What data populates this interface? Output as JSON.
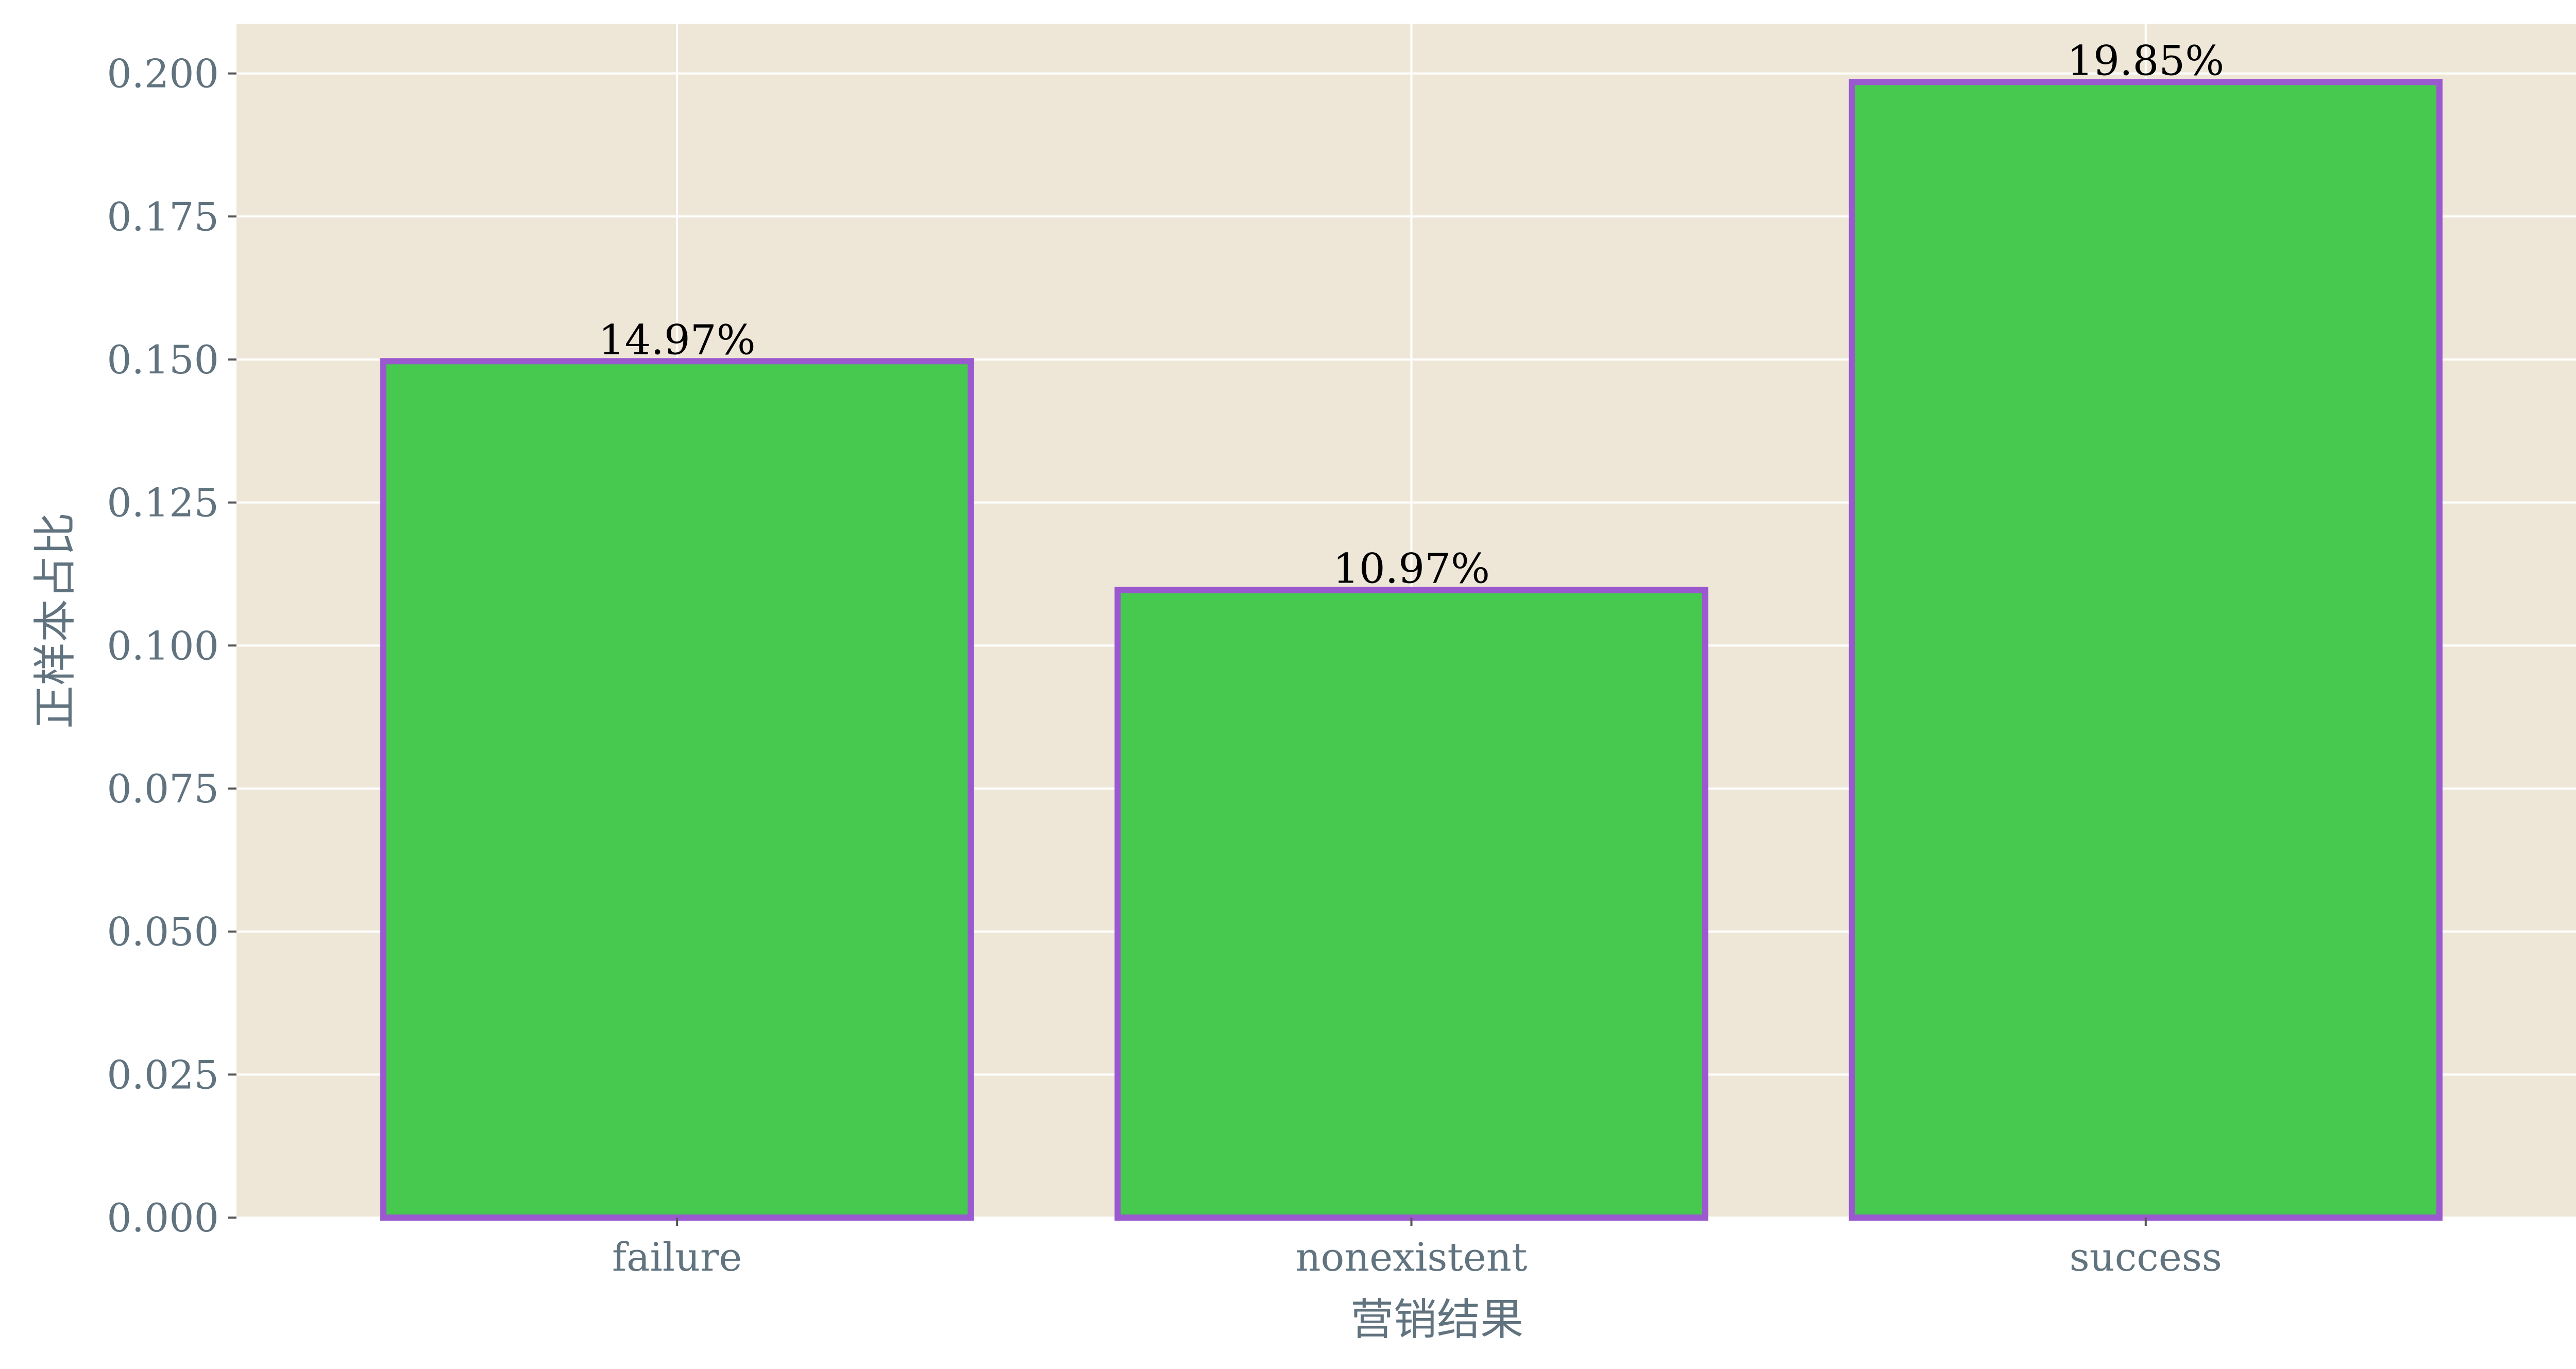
{
  "chart_data": {
    "type": "bar",
    "categories": [
      "failure",
      "nonexistent",
      "success"
    ],
    "values": [
      0.1497,
      0.1097,
      0.1985
    ],
    "data_labels": [
      "14.97%",
      "10.97%",
      "19.85%"
    ],
    "title": "",
    "xlabel": "营销结果",
    "ylabel": "正样本占比",
    "ylim": [
      0,
      0.2087
    ],
    "yticks": [
      0.0,
      0.025,
      0.05,
      0.075,
      0.1,
      0.125,
      0.15,
      0.175,
      0.2
    ],
    "ytick_labels": [
      "0.000",
      "0.025",
      "0.050",
      "0.075",
      "0.100",
      "0.125",
      "0.150",
      "0.175",
      "0.200"
    ],
    "grid": true,
    "legend": "none",
    "colors": {
      "bar_fill": "#46c94e",
      "bar_edge": "#9b59d0",
      "plot_background": "#eee7d8",
      "grid": "#ffffff",
      "tick_text": "#60737f",
      "label_text": "#000000"
    }
  }
}
